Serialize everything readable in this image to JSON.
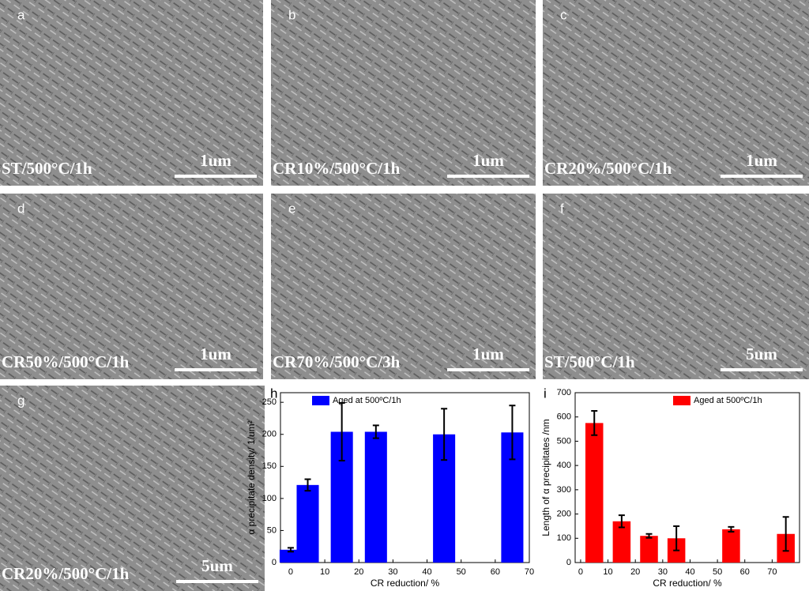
{
  "panels": [
    {
      "letter": "a",
      "caption": "ST/500°C/1h",
      "scale": "1um"
    },
    {
      "letter": "b",
      "caption": "CR10%/500°C/1h",
      "scale": "1um"
    },
    {
      "letter": "c",
      "caption": "CR20%/500°C/1h",
      "scale": "1um"
    },
    {
      "letter": "d",
      "caption": "CR50%/500°C/1h",
      "scale": "1um"
    },
    {
      "letter": "e",
      "caption": "CR70%/500°C/3h",
      "scale": "1um"
    },
    {
      "letter": "f",
      "caption": "ST/500°C/1h",
      "scale": "5um"
    },
    {
      "letter": "g",
      "caption": "CR20%/500°C/1h",
      "scale": "5um"
    }
  ],
  "chart_data": [
    {
      "type": "bar",
      "letter": "h",
      "x_label": "CR reduction/ %",
      "y_label": "α precipitate density/ 1/um²",
      "x": [
        0,
        5,
        15,
        25,
        45,
        65
      ],
      "xlim": [
        -3,
        70
      ],
      "xticks": [
        0,
        10,
        20,
        30,
        40,
        50,
        60,
        70
      ],
      "ylim": [
        0,
        265
      ],
      "yticks": [
        0,
        50,
        100,
        150,
        200,
        250
      ],
      "legend": "upper left",
      "series": [
        {
          "name": "Aged at 500ºC/1h",
          "color": "#0000ff",
          "values": [
            20,
            121,
            204,
            204,
            200,
            203
          ],
          "errors": [
            3,
            9,
            45,
            10,
            40,
            42
          ]
        }
      ]
    },
    {
      "type": "bar",
      "letter": "i",
      "x_label": "CR reduction/ %",
      "y_label": "Length of α precipitates /nm",
      "x": [
        5,
        15,
        25,
        35,
        55,
        75
      ],
      "xlim": [
        -2,
        80
      ],
      "xticks": [
        0,
        10,
        20,
        30,
        40,
        50,
        60,
        70
      ],
      "ylim": [
        0,
        700
      ],
      "yticks": [
        0,
        100,
        200,
        300,
        400,
        500,
        600,
        700
      ],
      "legend": "upper right",
      "series": [
        {
          "name": "Aged at 500ºC/1h",
          "color": "#ff0000",
          "values": [
            575,
            170,
            110,
            100,
            137,
            118
          ],
          "errors": [
            50,
            25,
            8,
            50,
            10,
            70
          ]
        }
      ]
    }
  ]
}
